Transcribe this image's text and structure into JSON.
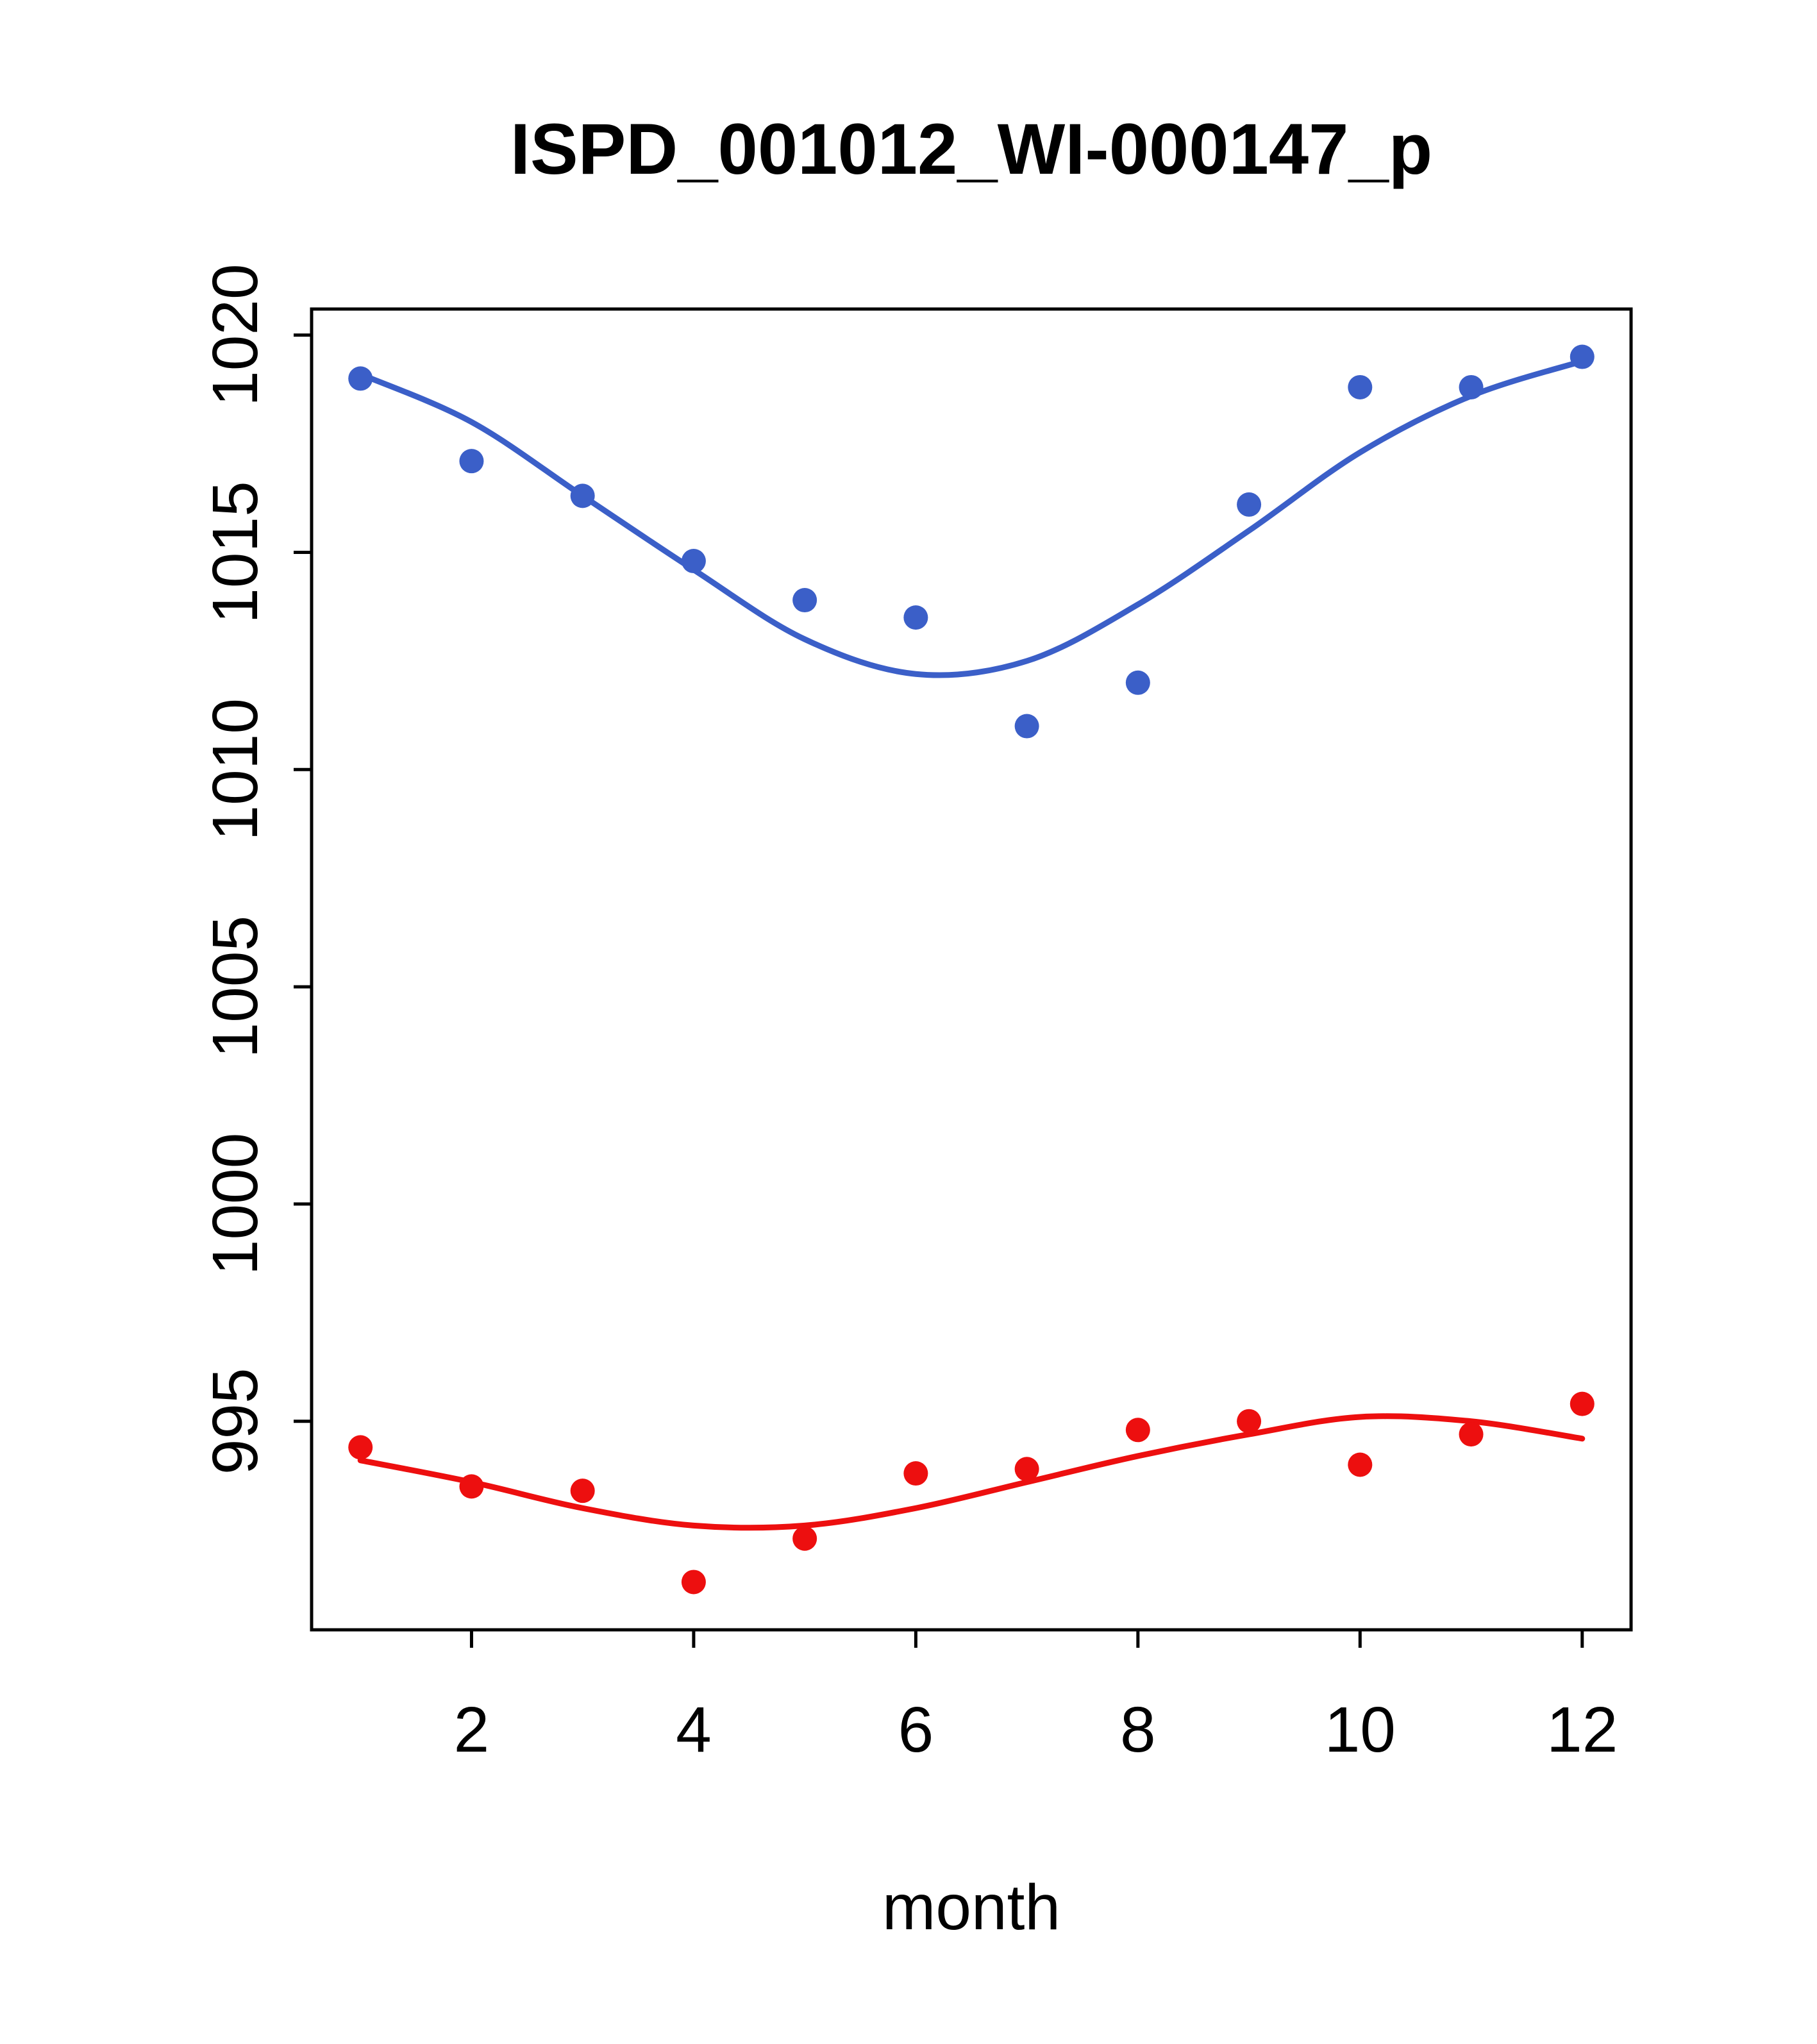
{
  "title": "ISPD_001012_WI-000147_p",
  "chart_data": {
    "type": "scatter",
    "title": "ISPD_001012_WI-000147_p",
    "xlabel": "month",
    "ylabel": "",
    "grid": false,
    "legend": "none",
    "xlim": [
      0.56,
      12.44
    ],
    "ylim": [
      990.2,
      1020.6
    ],
    "xticks": [
      2,
      4,
      6,
      8,
      10,
      12
    ],
    "yticks": [
      995,
      1000,
      1005,
      1010,
      1015,
      1020
    ],
    "x": [
      1,
      2,
      3,
      4,
      5,
      6,
      7,
      8,
      9,
      10,
      11,
      12
    ],
    "colors": {
      "blue": "#3b5fc8",
      "red": "#ed0f0f",
      "axis": "#000000"
    },
    "series": [
      {
        "name": "blue-smooth-line",
        "kind": "line",
        "color": "#3b5fc8",
        "values": [
          1019.1,
          1018.0,
          1016.3,
          1014.6,
          1013.0,
          1012.2,
          1012.5,
          1013.8,
          1015.5,
          1017.3,
          1018.6,
          1019.4
        ]
      },
      {
        "name": "blue-points",
        "kind": "points",
        "color": "#3b5fc8",
        "values": [
          1019.0,
          1017.1,
          1016.3,
          1014.8,
          1013.9,
          1013.5,
          1011.0,
          1012.0,
          1016.1,
          1018.8,
          1018.8,
          1019.5
        ]
      },
      {
        "name": "red-smooth-line",
        "kind": "line",
        "color": "#ed0f0f",
        "values": [
          994.1,
          993.6,
          993.0,
          992.6,
          992.6,
          993.0,
          993.6,
          994.2,
          994.7,
          995.1,
          995.0,
          994.6
        ]
      },
      {
        "name": "red-points",
        "kind": "points",
        "color": "#ed0f0f",
        "values": [
          994.4,
          993.5,
          993.4,
          991.3,
          992.3,
          993.8,
          993.9,
          994.8,
          995.0,
          994.0,
          994.7,
          995.4
        ]
      }
    ]
  }
}
